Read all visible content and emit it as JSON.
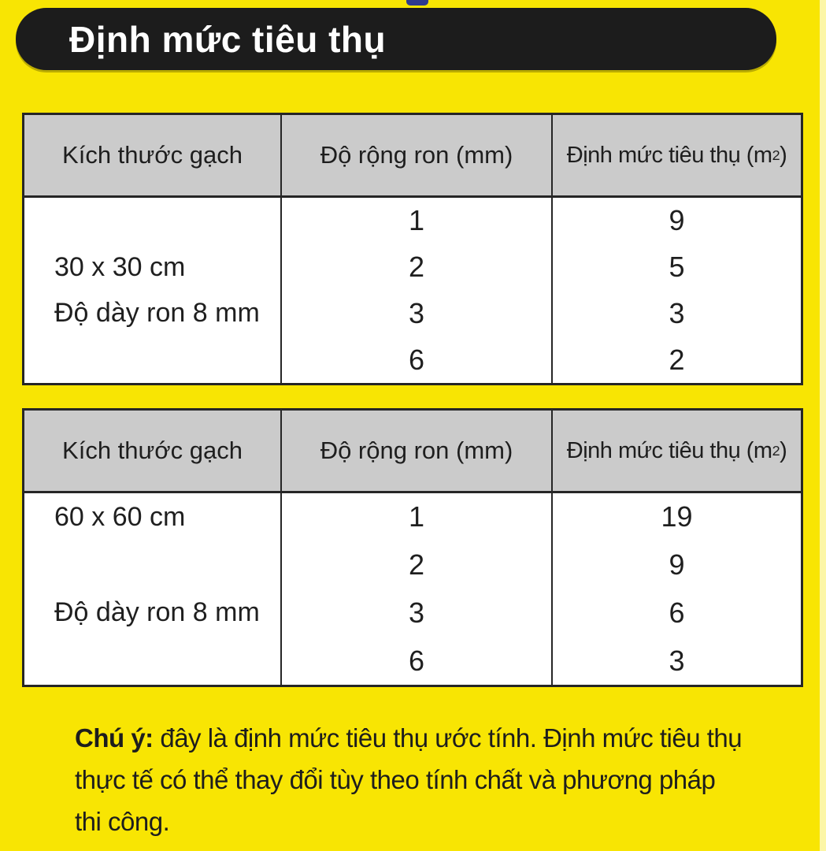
{
  "page": {
    "background_color": "#f8e503",
    "right_edge_strip_color": "#fcf6a6",
    "top_mark_color": "#2f3b8f",
    "banner_background_color": "#1c1c1c",
    "banner_text_color": "#ffffff",
    "table_header_background_color": "#cbcbcb",
    "table_border_color": "#262626"
  },
  "banner": {
    "title": "Định mức tiêu thụ"
  },
  "tables": [
    {
      "header": {
        "col1": "Kích thước gạch",
        "col2": "Độ rộng ron (mm)",
        "col3_prefix": "Định mức tiêu thụ (m",
        "col3_sup": "2",
        "col3_suffix": ")"
      },
      "tile_size": "30 x 30 cm",
      "grout_note": "Độ dày ron 8 mm",
      "ron_widths": [
        "1",
        "2",
        "3",
        "6"
      ],
      "consumption": [
        "9",
        "5",
        "3",
        "2"
      ]
    },
    {
      "header": {
        "col1": "Kích thước gạch",
        "col2": "Độ rộng ron (mm)",
        "col3_prefix": "Định mức tiêu thụ (m",
        "col3_sup": "2",
        "col3_suffix": ")"
      },
      "tile_size": "60 x 60 cm",
      "grout_note": "Độ dày ron 8 mm",
      "ron_widths": [
        "1",
        "2",
        "3",
        "6"
      ],
      "consumption": [
        "19",
        "9",
        "6",
        "3"
      ]
    }
  ],
  "note": {
    "label": "Chú ý:",
    "line1_rest": " đây là định mức tiêu thụ ước tính. Định mức tiêu thụ",
    "line2": "thực tế có thể thay đổi tùy theo tính chất và phương pháp",
    "line3": "thi công."
  }
}
